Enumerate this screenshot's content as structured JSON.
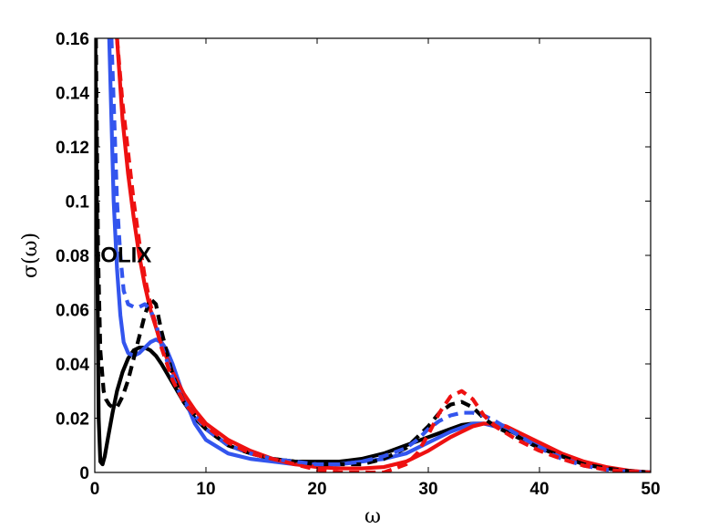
{
  "chart_data": {
    "type": "line",
    "title": "",
    "xlabel": "ω",
    "ylabel": "σ(ω)",
    "xlim": [
      0,
      50
    ],
    "ylim": [
      0,
      0.16
    ],
    "xticks": [
      0,
      10,
      20,
      30,
      40,
      50
    ],
    "xtick_labels": [
      "0",
      "10",
      "20",
      "30",
      "40",
      "50"
    ],
    "yticks": [
      0,
      0.02,
      0.04,
      0.06,
      0.08,
      0.1,
      0.12,
      0.14,
      0.16
    ],
    "ytick_labels": [
      "0",
      "0.02",
      "0.04",
      "0.06",
      "0.08",
      "0.1",
      "0.12",
      "0.14",
      "0.16"
    ],
    "grid": false,
    "annotation": "OLIX",
    "annotation_position": [
      1.5,
      0.08
    ],
    "series": [
      {
        "color": "#000000",
        "style": "solid",
        "x": [
          0.05,
          0.2,
          0.35,
          0.5,
          0.7,
          0.9,
          1.2,
          1.6,
          2.0,
          2.5,
          3.0,
          3.5,
          4.0,
          4.5,
          5.0,
          5.5,
          6,
          7,
          8,
          9,
          10,
          12,
          14,
          16,
          18,
          20,
          22,
          24,
          26,
          28,
          30,
          32,
          33,
          34,
          35,
          36,
          37,
          38,
          40,
          42,
          44,
          46,
          48,
          50
        ],
        "y": [
          0.16,
          0.09,
          0.02,
          0.004,
          0.003,
          0.006,
          0.013,
          0.022,
          0.03,
          0.037,
          0.042,
          0.045,
          0.046,
          0.046,
          0.045,
          0.043,
          0.04,
          0.033,
          0.026,
          0.02,
          0.016,
          0.01,
          0.007,
          0.005,
          0.004,
          0.004,
          0.004,
          0.005,
          0.007,
          0.01,
          0.013,
          0.016,
          0.0175,
          0.018,
          0.018,
          0.0175,
          0.016,
          0.014,
          0.01,
          0.006,
          0.003,
          0.0015,
          0.0005,
          0.0
        ]
      },
      {
        "color": "#000000",
        "style": "dashed",
        "x": [
          0.1,
          0.3,
          0.5,
          0.8,
          1.0,
          1.3,
          1.6,
          2.0,
          2.5,
          3.0,
          3.5,
          4.0,
          4.5,
          5.0,
          5.5,
          6,
          7,
          8,
          10,
          12,
          14,
          16,
          18,
          20,
          22,
          24,
          26,
          28,
          30,
          31,
          32,
          33,
          34,
          35,
          36,
          38,
          40,
          42,
          44,
          46,
          48,
          50
        ],
        "y": [
          0.16,
          0.08,
          0.045,
          0.03,
          0.027,
          0.025,
          0.024,
          0.024,
          0.028,
          0.034,
          0.042,
          0.05,
          0.058,
          0.064,
          0.062,
          0.052,
          0.036,
          0.026,
          0.016,
          0.01,
          0.007,
          0.005,
          0.004,
          0.003,
          0.003,
          0.003,
          0.005,
          0.009,
          0.017,
          0.022,
          0.025,
          0.026,
          0.024,
          0.02,
          0.017,
          0.013,
          0.009,
          0.006,
          0.003,
          0.0015,
          0.0005,
          0.0
        ]
      },
      {
        "color": "#3355ee",
        "style": "solid",
        "x": [
          1.3,
          1.5,
          1.7,
          2.0,
          2.3,
          2.6,
          3.0,
          3.5,
          4.0,
          4.5,
          5.0,
          5.5,
          6.0,
          6.5,
          7,
          8,
          9,
          10,
          12,
          14,
          16,
          18,
          20,
          22,
          24,
          26,
          28,
          30,
          32,
          34,
          35,
          36,
          38,
          40,
          42,
          44,
          46,
          48,
          50
        ],
        "y": [
          0.16,
          0.13,
          0.1,
          0.075,
          0.058,
          0.048,
          0.044,
          0.043,
          0.044,
          0.046,
          0.048,
          0.049,
          0.048,
          0.045,
          0.04,
          0.028,
          0.018,
          0.012,
          0.007,
          0.005,
          0.004,
          0.003,
          0.003,
          0.003,
          0.004,
          0.005,
          0.007,
          0.011,
          0.015,
          0.018,
          0.018,
          0.017,
          0.015,
          0.01,
          0.006,
          0.003,
          0.0015,
          0.0005,
          0.0
        ]
      },
      {
        "color": "#3355ee",
        "style": "dashed",
        "x": [
          1.5,
          1.8,
          2.0,
          2.3,
          2.6,
          3.0,
          3.5,
          4.0,
          4.5,
          5.0,
          5.5,
          6.0,
          7,
          8,
          10,
          12,
          14,
          16,
          18,
          20,
          22,
          24,
          26,
          28,
          29,
          30,
          31,
          32,
          33,
          34,
          35,
          36,
          38,
          40,
          42,
          44,
          46,
          48,
          50
        ],
        "y": [
          0.16,
          0.125,
          0.1,
          0.08,
          0.067,
          0.062,
          0.061,
          0.061,
          0.062,
          0.06,
          0.055,
          0.047,
          0.035,
          0.026,
          0.016,
          0.01,
          0.007,
          0.005,
          0.004,
          0.003,
          0.003,
          0.004,
          0.006,
          0.009,
          0.012,
          0.016,
          0.019,
          0.021,
          0.022,
          0.022,
          0.021,
          0.019,
          0.014,
          0.009,
          0.005,
          0.0025,
          0.001,
          0.0003,
          0.0
        ]
      },
      {
        "color": "#ee1111",
        "style": "solid",
        "x": [
          2.0,
          2.5,
          3.0,
          3.5,
          4.0,
          4.5,
          5.0,
          6,
          7,
          8,
          9,
          10,
          12,
          14,
          16,
          18,
          20,
          22,
          24,
          26,
          28,
          30,
          32,
          34,
          35,
          36,
          37,
          38,
          40,
          42,
          44,
          46,
          48,
          50
        ],
        "y": [
          0.16,
          0.13,
          0.11,
          0.094,
          0.08,
          0.069,
          0.06,
          0.047,
          0.037,
          0.029,
          0.023,
          0.018,
          0.012,
          0.008,
          0.005,
          0.003,
          0.002,
          0.0015,
          0.0015,
          0.002,
          0.004,
          0.008,
          0.013,
          0.017,
          0.018,
          0.018,
          0.017,
          0.015,
          0.011,
          0.007,
          0.004,
          0.002,
          0.0007,
          0.0
        ]
      },
      {
        "color": "#ee1111",
        "style": "dashed",
        "x": [
          2.0,
          2.5,
          3.0,
          3.5,
          4.0,
          4.5,
          5.0,
          6,
          7,
          8,
          9,
          10,
          12,
          14,
          16,
          18,
          20,
          22,
          24,
          26,
          28,
          29,
          30,
          31,
          32,
          33,
          34,
          35,
          36,
          38,
          40,
          42,
          44,
          46,
          48,
          50
        ],
        "y": [
          0.16,
          0.136,
          0.118,
          0.1,
          0.085,
          0.072,
          0.062,
          0.046,
          0.034,
          0.026,
          0.021,
          0.017,
          0.011,
          0.007,
          0.005,
          0.003,
          0.001,
          0.0,
          0.0,
          0.0,
          0.003,
          0.007,
          0.014,
          0.022,
          0.028,
          0.03,
          0.027,
          0.021,
          0.017,
          0.012,
          0.008,
          0.005,
          0.0025,
          0.001,
          0.0003,
          0.0
        ]
      }
    ]
  }
}
